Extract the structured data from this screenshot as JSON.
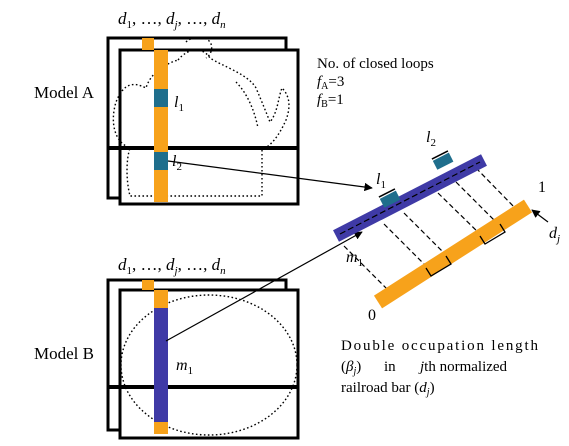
{
  "colors": {
    "orange": "#f7a21b",
    "teal": "#1f6e8c",
    "blue": "#3f3aa6",
    "black": "#000000"
  },
  "model_a": {
    "label": "Model A",
    "header_d1": "d",
    "header_d1_sub": "1",
    "header_sep1": ", …, ",
    "header_dj": "d",
    "header_dj_sub": "j",
    "header_sep2": ", …, ",
    "header_dn": "d",
    "header_dn_sub": "n",
    "loop1": "l",
    "loop1_sub": "1",
    "loop2": "l",
    "loop2_sub": "2"
  },
  "model_b": {
    "label": "Model B",
    "header_d1": "d",
    "header_d1_sub": "1",
    "header_sep1": ", …, ",
    "header_dj": "d",
    "header_dj_sub": "j",
    "header_sep2": ", …, ",
    "header_dn": "d",
    "header_dn_sub": "n",
    "loop": "m",
    "loop_sub": "1"
  },
  "closed_loops": {
    "title": "No. of closed loops",
    "fa_f": "f",
    "fa_sub": "A",
    "fa_value": "=3",
    "fb_f": "f",
    "fb_sub": "B",
    "fb_value": "=1"
  },
  "railroad": {
    "l1": "l",
    "l1_sub": "1",
    "l2": "l",
    "l2_sub": "2",
    "m1": "m",
    "m1_sub": "1",
    "end_one": "1",
    "end_zero": "0",
    "dj": "d",
    "dj_sub": "j"
  },
  "caption": {
    "line1": "Double occupation length",
    "line2_open": "(",
    "line2_beta": "β",
    "line2_beta_sub": "j",
    "line2_close": ")",
    "line2_in": "in",
    "line2_j": "j",
    "line2_rest": "th normalized",
    "line3_a": "railroad bar (",
    "line3_d": "d",
    "line3_sub": "j",
    "line3_b": ")"
  }
}
